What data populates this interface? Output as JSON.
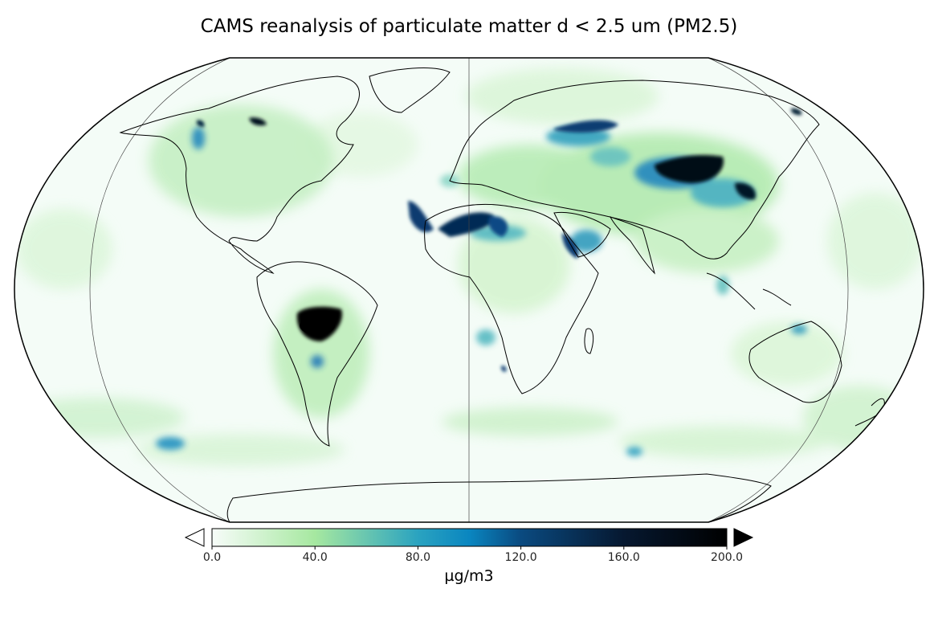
{
  "title": "CAMS reanalysis of particulate matter d < 2.5 um (PM2.5)",
  "colorbar": {
    "unit": "µg/m3",
    "ticks": [
      "0.0",
      "40.0",
      "80.0",
      "120.0",
      "160.0",
      "200.0"
    ],
    "min": 0,
    "max": 200,
    "extend_min_color": "#ffffff",
    "extend_max_color": "#000000",
    "stops": [
      {
        "value": 0,
        "color": "#f7fcf9"
      },
      {
        "value": 40,
        "color": "#a6e8a0"
      },
      {
        "value": 80,
        "color": "#2aa3c0"
      },
      {
        "value": 100,
        "color": "#0a86c0"
      },
      {
        "value": 120,
        "color": "#0a4a80"
      },
      {
        "value": 160,
        "color": "#061830"
      },
      {
        "value": 200,
        "color": "#000000"
      }
    ]
  },
  "map": {
    "projection": "Robinson",
    "ocean_color": "#f4fcf7",
    "coastline_color": "#000000"
  }
}
